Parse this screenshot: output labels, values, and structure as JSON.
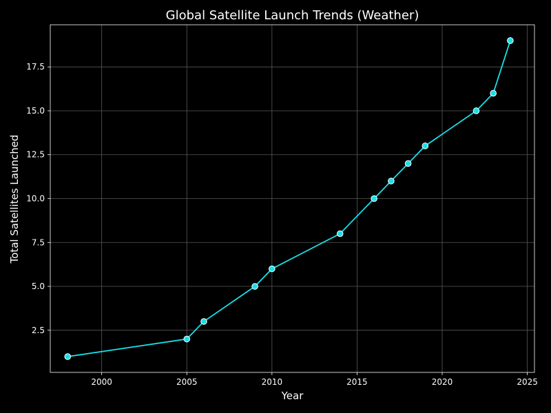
{
  "chart_data": {
    "type": "line",
    "title": "Global Satellite Launch Trends (Weather)",
    "xlabel": "Year",
    "ylabel": "Total Satellites Launched",
    "xlim": [
      1996.98,
      2025.42
    ],
    "ylim": [
      0.1,
      19.9
    ],
    "xticks": [
      2000,
      2005,
      2010,
      2015,
      2020,
      2025
    ],
    "yticks": [
      2.5,
      5.0,
      7.5,
      10.0,
      12.5,
      15.0,
      17.5
    ],
    "xtick_labels": [
      "2000",
      "2005",
      "2010",
      "2015",
      "2020",
      "2025"
    ],
    "ytick_labels": [
      "2.5",
      "5.0",
      "7.5",
      "10.0",
      "12.5",
      "15.0",
      "17.5"
    ],
    "grid": true,
    "legend": "none",
    "colors": {
      "background": "#000000",
      "line": "#19e0e8",
      "marker_fill": "#19e0e8",
      "marker_edge": "#ffffff",
      "text": "#ffffff",
      "grid": "#5a5a5a"
    },
    "series": [
      {
        "x": [
          1998,
          2005,
          2006,
          2009,
          2010,
          2014,
          2016,
          2017,
          2018,
          2019,
          2022,
          2023,
          2024
        ],
        "y": [
          1,
          2,
          3,
          5,
          6,
          8,
          10,
          11,
          12,
          13,
          15,
          16,
          19
        ]
      }
    ]
  }
}
